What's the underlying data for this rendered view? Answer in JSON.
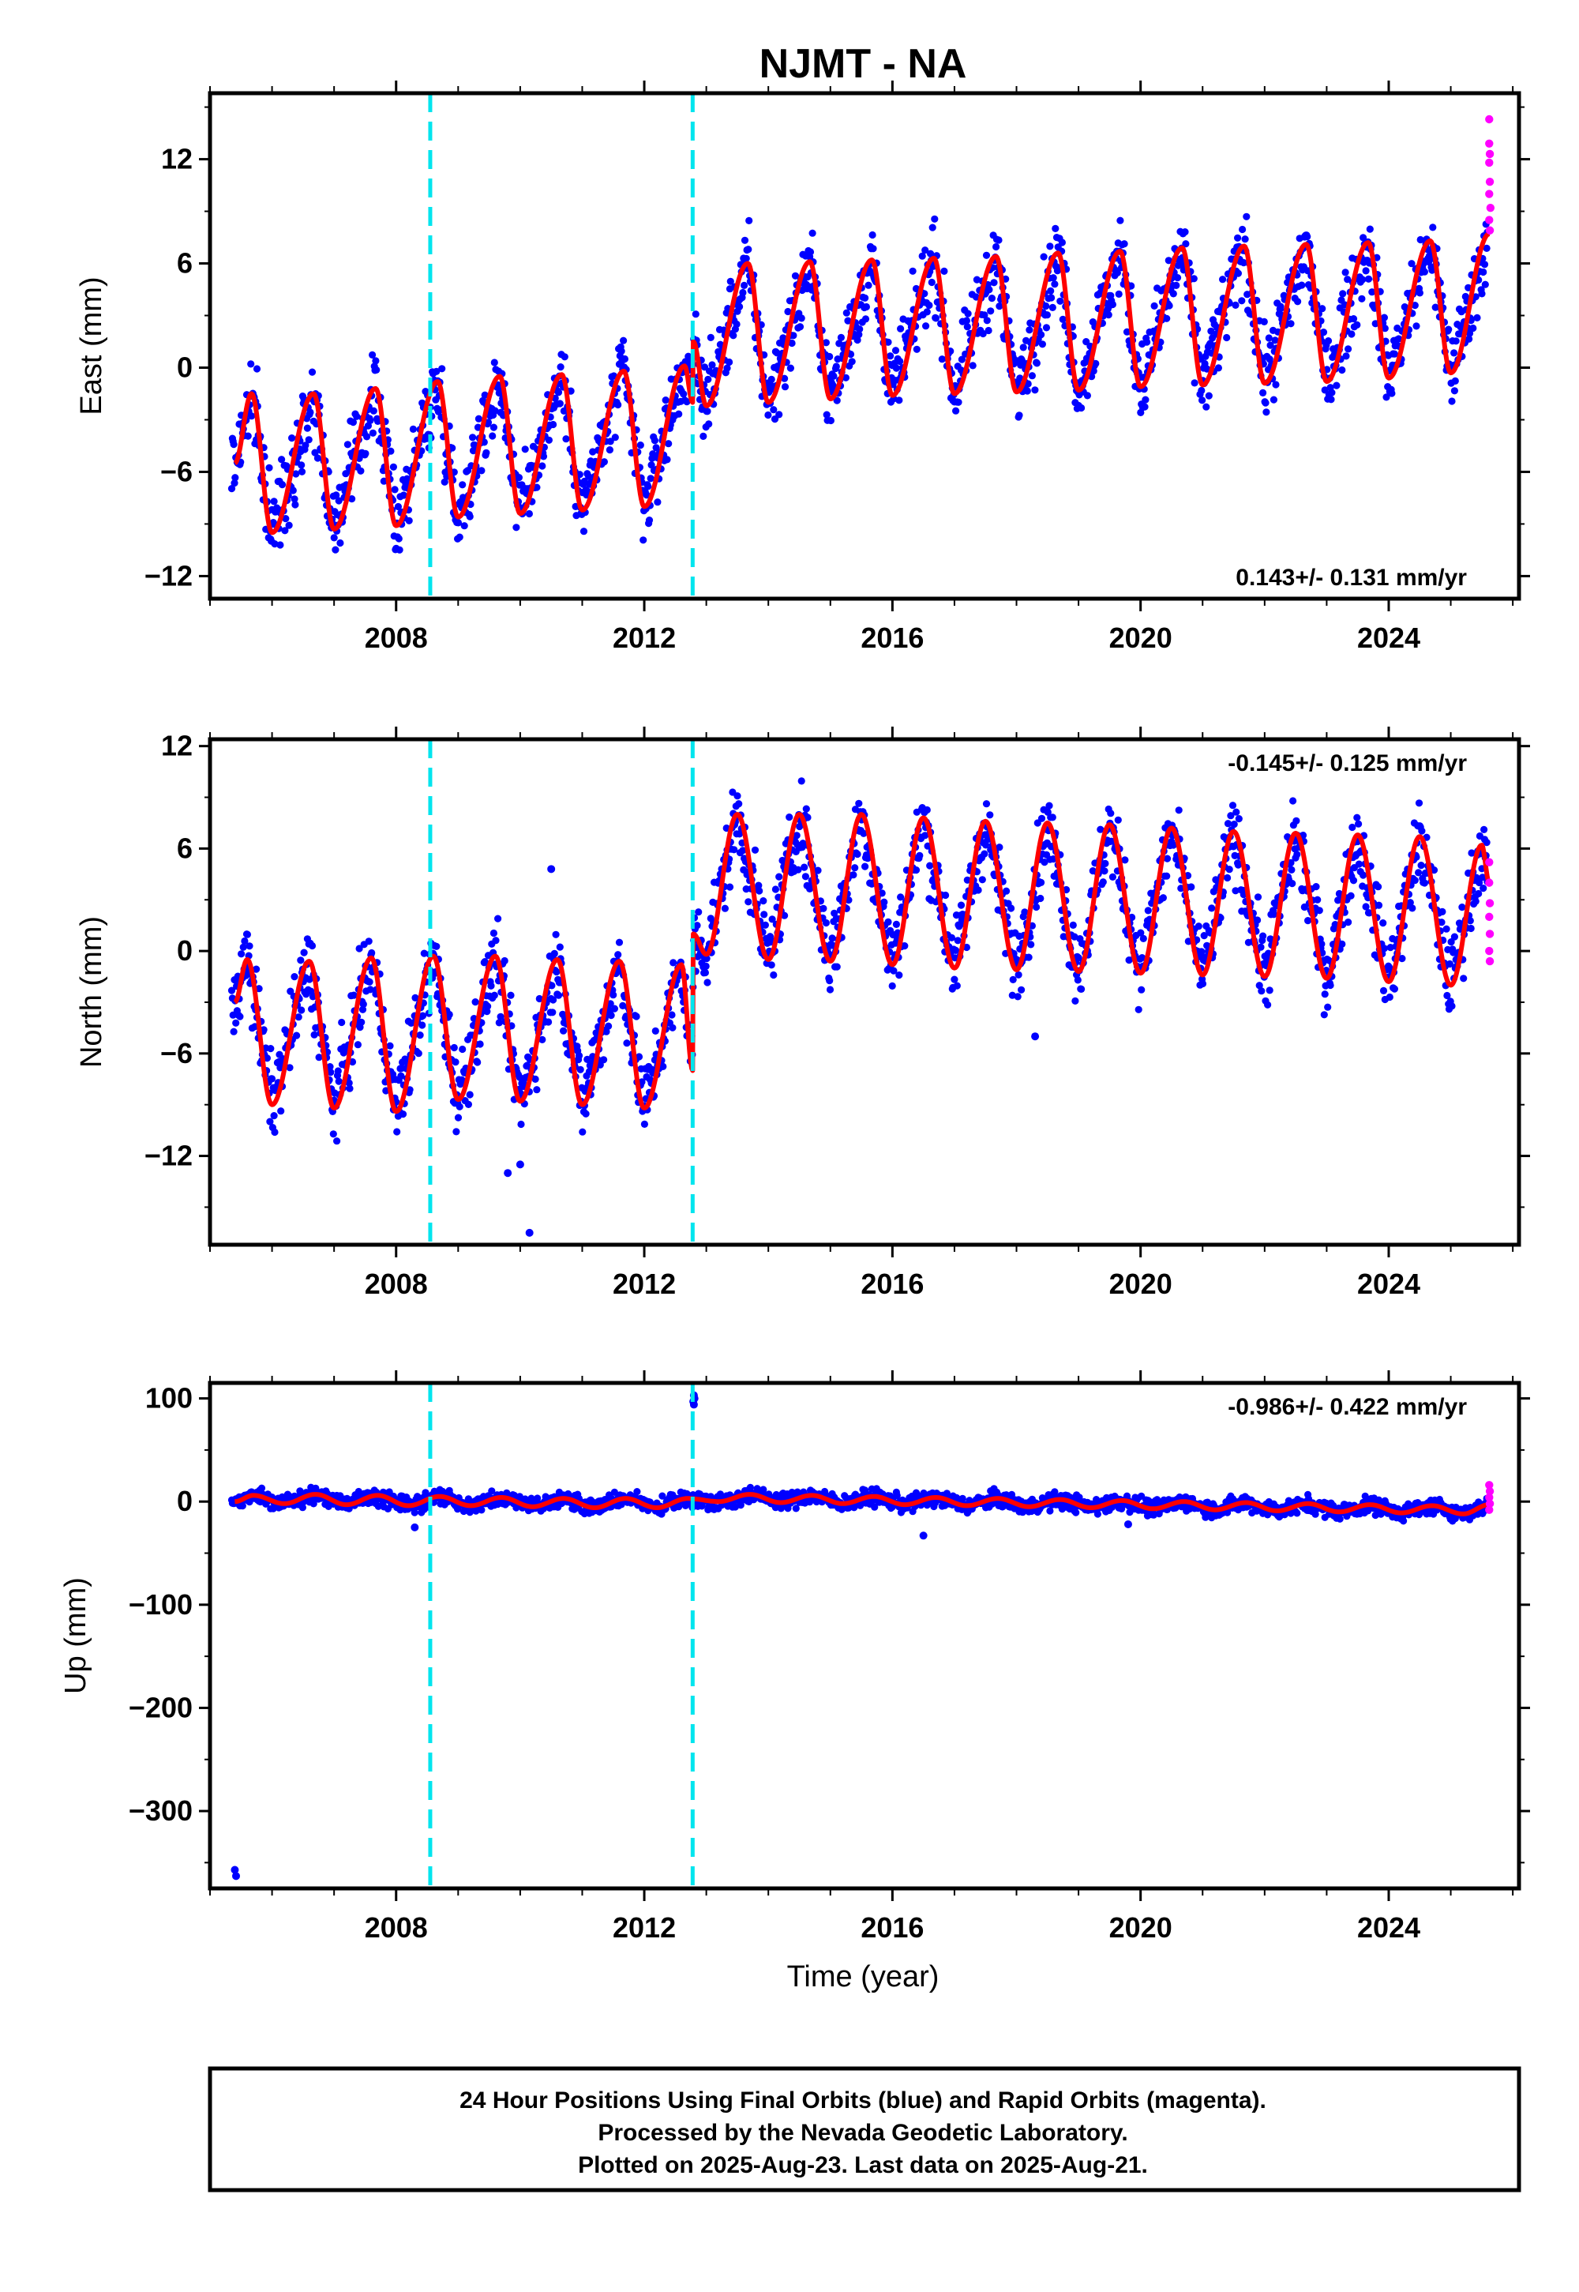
{
  "title": "NJMT - NA",
  "xlabel": "Time (year)",
  "footer": {
    "line1": "24 Hour Positions Using Final Orbits (blue) and Rapid Orbits (magenta).",
    "line2": "Processed by the Nevada Geodetic Laboratory.",
    "line3": "Plotted on 2025-Aug-23. Last data on 2025-Aug-21."
  },
  "colors": {
    "final": "#0000ff",
    "rapid": "#ff00ff",
    "model": "#ff0000",
    "offset": "#00e5ee"
  },
  "chart_data": [
    {
      "type": "scatter",
      "ylabel": "East (mm)",
      "xlim": [
        2005.0,
        2026.1
      ],
      "ylim": [
        -13.3,
        15.8
      ],
      "yticks": [
        12,
        6,
        0,
        -6,
        -12
      ],
      "xticks": [
        2008,
        2012,
        2016,
        2020,
        2024
      ],
      "rate": "0.143+/- 0.131 mm/yr",
      "offsets": [
        2008.55,
        2012.78
      ],
      "model": [
        [
          2005.4,
          -5.5
        ],
        [
          2005.67,
          -1.5
        ],
        [
          2006.0,
          -9.5
        ],
        [
          2006.67,
          -1.5
        ],
        [
          2007.0,
          -9.3
        ],
        [
          2007.67,
          -1.2
        ],
        [
          2008.0,
          -9.1
        ],
        [
          2008.67,
          -0.8
        ],
        [
          2009.0,
          -8.6
        ],
        [
          2009.67,
          -0.5
        ],
        [
          2010.0,
          -8.4
        ],
        [
          2010.67,
          -0.4
        ],
        [
          2011.0,
          -8.2
        ],
        [
          2011.67,
          -0.2
        ],
        [
          2012.0,
          -8.0
        ],
        [
          2012.65,
          0.1
        ],
        [
          2012.78,
          -2.0
        ],
        [
          2012.79,
          1.5
        ],
        [
          2013.0,
          -2.2
        ],
        [
          2013.67,
          6.0
        ],
        [
          2014.0,
          -2.0
        ],
        [
          2014.67,
          6.1
        ],
        [
          2015.0,
          -1.8
        ],
        [
          2015.67,
          6.2
        ],
        [
          2016.0,
          -1.6
        ],
        [
          2016.67,
          6.3
        ],
        [
          2017.0,
          -1.5
        ],
        [
          2017.67,
          6.4
        ],
        [
          2018.0,
          -1.4
        ],
        [
          2018.67,
          6.6
        ],
        [
          2019.0,
          -1.3
        ],
        [
          2019.67,
          6.7
        ],
        [
          2020.0,
          -1.1
        ],
        [
          2020.67,
          6.9
        ],
        [
          2021.0,
          -1.0
        ],
        [
          2021.67,
          7.0
        ],
        [
          2022.0,
          -0.9
        ],
        [
          2022.67,
          7.1
        ],
        [
          2023.0,
          -0.8
        ],
        [
          2023.67,
          7.2
        ],
        [
          2024.0,
          -0.6
        ],
        [
          2024.67,
          7.3
        ],
        [
          2025.0,
          -0.3
        ],
        [
          2025.62,
          7.7
        ]
      ],
      "scatter": {
        "start": 2005.35,
        "end": 2025.6,
        "step": 0.011,
        "noise": 1.6
      },
      "rapid": [
        [
          2025.62,
          14.3
        ],
        [
          2025.62,
          12.9
        ],
        [
          2025.62,
          11.8
        ],
        [
          2025.63,
          10.7
        ],
        [
          2025.62,
          10.0
        ],
        [
          2025.64,
          9.2
        ],
        [
          2025.62,
          8.5
        ],
        [
          2025.63,
          7.9
        ],
        [
          2025.63,
          12.3
        ]
      ]
    },
    {
      "type": "scatter",
      "ylabel": "North (mm)",
      "xlim": [
        2005.0,
        2026.1
      ],
      "ylim": [
        -17.2,
        12.4
      ],
      "yticks": [
        12,
        6,
        0,
        -6,
        -12
      ],
      "xticks": [
        2008,
        2012,
        2016,
        2020,
        2024
      ],
      "rate": "-0.145+/- 0.125 mm/yr",
      "offsets": [
        2008.55,
        2012.78
      ],
      "model": [
        [
          2005.4,
          -3.0
        ],
        [
          2005.6,
          -0.5
        ],
        [
          2006.0,
          -9.0
        ],
        [
          2006.6,
          -0.6
        ],
        [
          2007.0,
          -9.2
        ],
        [
          2007.6,
          -0.4
        ],
        [
          2008.0,
          -9.4
        ],
        [
          2008.6,
          -0.3
        ],
        [
          2009.0,
          -8.7
        ],
        [
          2009.6,
          -0.3
        ],
        [
          2010.0,
          -8.8
        ],
        [
          2010.6,
          -0.5
        ],
        [
          2011.0,
          -9.0
        ],
        [
          2011.6,
          -0.6
        ],
        [
          2012.0,
          -9.2
        ],
        [
          2012.6,
          -0.8
        ],
        [
          2012.78,
          -7.0
        ],
        [
          2012.79,
          1.0
        ],
        [
          2013.0,
          -0.2
        ],
        [
          2013.5,
          8.0
        ],
        [
          2014.0,
          -0.5
        ],
        [
          2014.5,
          8.0
        ],
        [
          2015.0,
          -0.6
        ],
        [
          2015.5,
          8.0
        ],
        [
          2016.0,
          -0.8
        ],
        [
          2016.5,
          7.8
        ],
        [
          2017.0,
          -1.0
        ],
        [
          2017.5,
          7.6
        ],
        [
          2018.0,
          -1.1
        ],
        [
          2018.5,
          7.5
        ],
        [
          2019.0,
          -1.2
        ],
        [
          2019.5,
          7.4
        ],
        [
          2020.0,
          -1.3
        ],
        [
          2020.5,
          7.2
        ],
        [
          2021.0,
          -1.4
        ],
        [
          2021.5,
          7.0
        ],
        [
          2022.0,
          -1.5
        ],
        [
          2022.5,
          6.9
        ],
        [
          2023.0,
          -1.6
        ],
        [
          2023.5,
          6.8
        ],
        [
          2024.0,
          -1.8
        ],
        [
          2024.5,
          6.7
        ],
        [
          2025.0,
          -2.0
        ],
        [
          2025.5,
          6.2
        ],
        [
          2025.62,
          4.0
        ]
      ],
      "scatter": {
        "start": 2005.35,
        "end": 2025.6,
        "step": 0.011,
        "noise": 1.6
      },
      "outliers": [
        [
          2010.5,
          4.8
        ],
        [
          2010.15,
          -16.5
        ],
        [
          2010.0,
          -12.5
        ],
        [
          2009.8,
          -13.0
        ],
        [
          2018.3,
          -5.0
        ]
      ],
      "rapid": [
        [
          2025.62,
          5.2
        ],
        [
          2025.62,
          4.0
        ],
        [
          2025.63,
          2.8
        ],
        [
          2025.62,
          2.0
        ],
        [
          2025.63,
          1.0
        ],
        [
          2025.62,
          0.0
        ],
        [
          2025.63,
          -0.6
        ]
      ]
    },
    {
      "type": "scatter",
      "ylabel": "Up (mm)",
      "xlim": [
        2005.0,
        2026.1
      ],
      "ylim": [
        -375,
        115
      ],
      "yticks": [
        100,
        0,
        -100,
        -200,
        -300
      ],
      "xticks": [
        2008,
        2012,
        2016,
        2020,
        2024
      ],
      "rate": "-0.986+/- 0.422 mm/yr",
      "offsets": [
        2008.55,
        2012.78
      ],
      "model": [
        [
          2005.4,
          0.0
        ],
        [
          2005.7,
          6.0
        ],
        [
          2006.2,
          -2.0
        ],
        [
          2006.7,
          7.0
        ],
        [
          2007.2,
          -3.0
        ],
        [
          2007.7,
          6.0
        ],
        [
          2008.2,
          -4.0
        ],
        [
          2008.7,
          5.0
        ],
        [
          2009.2,
          -4.0
        ],
        [
          2009.7,
          4.0
        ],
        [
          2010.2,
          -5.0
        ],
        [
          2010.7,
          3.0
        ],
        [
          2011.2,
          -6.0
        ],
        [
          2011.7,
          3.0
        ],
        [
          2012.2,
          -6.0
        ],
        [
          2012.7,
          3.0
        ],
        [
          2013.2,
          0.0
        ],
        [
          2013.7,
          7.0
        ],
        [
          2014.2,
          -1.0
        ],
        [
          2014.7,
          6.0
        ],
        [
          2015.2,
          -2.0
        ],
        [
          2015.7,
          5.0
        ],
        [
          2016.2,
          -3.0
        ],
        [
          2016.7,
          4.0
        ],
        [
          2017.2,
          -4.0
        ],
        [
          2017.7,
          3.0
        ],
        [
          2018.2,
          -5.0
        ],
        [
          2018.7,
          2.0
        ],
        [
          2019.2,
          -6.0
        ],
        [
          2019.7,
          1.0
        ],
        [
          2020.2,
          -7.0
        ],
        [
          2020.7,
          0.0
        ],
        [
          2021.2,
          -8.0
        ],
        [
          2021.7,
          -1.0
        ],
        [
          2022.2,
          -9.0
        ],
        [
          2022.7,
          -2.0
        ],
        [
          2023.2,
          -10.0
        ],
        [
          2023.7,
          -3.0
        ],
        [
          2024.2,
          -11.0
        ],
        [
          2024.7,
          -4.0
        ],
        [
          2025.2,
          -12.0
        ],
        [
          2025.62,
          -3.0
        ]
      ],
      "scatter": {
        "start": 2005.35,
        "end": 2025.6,
        "step": 0.011,
        "noise": 5.5
      },
      "outliers": [
        [
          2005.4,
          -357
        ],
        [
          2005.42,
          -363
        ],
        [
          2012.8,
          103
        ],
        [
          2012.79,
          97
        ],
        [
          2012.81,
          100
        ],
        [
          2012.8,
          94
        ],
        [
          2008.3,
          -25
        ],
        [
          2016.5,
          -33
        ],
        [
          2019.8,
          -22
        ]
      ],
      "rapid": [
        [
          2025.62,
          16.0
        ],
        [
          2025.63,
          10.0
        ],
        [
          2025.62,
          4.0
        ],
        [
          2025.63,
          -2.0
        ],
        [
          2025.62,
          -8.0
        ]
      ]
    }
  ]
}
